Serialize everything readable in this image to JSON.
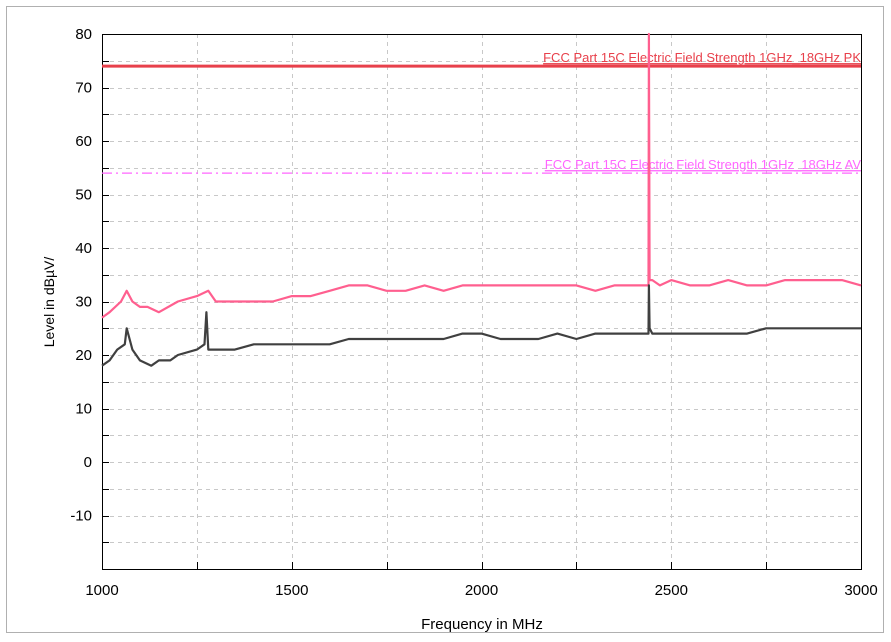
{
  "chart_data": {
    "type": "line",
    "xlabel": "Frequency in MHz",
    "ylabel": "Level in dBµV/",
    "xlim": [
      1000,
      3000
    ],
    "ylim": [
      -20,
      80
    ],
    "x_ticks": [
      1000,
      1500,
      2000,
      2500,
      3000
    ],
    "x_tick_labels": [
      "1000",
      "1500",
      "2000",
      "2500",
      "3000"
    ],
    "y_ticks": [
      -10,
      0,
      10,
      20,
      30,
      40,
      50,
      60,
      70,
      80
    ],
    "y_tick_labels": [
      "-10",
      "0",
      "10",
      "20",
      "30",
      "40",
      "50",
      "60",
      "70",
      "80"
    ],
    "grid": true,
    "limit_lines": [
      {
        "label": "FCC Part 15C Electric Field Strength 1GHz_18GHz PK",
        "value": 74,
        "color": "#e8404b",
        "style": "solid"
      },
      {
        "label": "FCC Part 15C Electric Field Strength 1GHz_18GHz AV",
        "value": 54,
        "color": "#ff66ff",
        "style": "dashdot"
      }
    ],
    "series": [
      {
        "color": "#ff5f8f",
        "x": [
          1000,
          1020,
          1050,
          1065,
          1080,
          1100,
          1120,
          1150,
          1200,
          1250,
          1280,
          1300,
          1350,
          1400,
          1450,
          1500,
          1550,
          1600,
          1650,
          1700,
          1750,
          1800,
          1850,
          1900,
          1950,
          2000,
          2050,
          2100,
          2150,
          2200,
          2250,
          2300,
          2350,
          2400,
          2430,
          2440,
          2441,
          2443,
          2450,
          2470,
          2500,
          2550,
          2600,
          2650,
          2700,
          2750,
          2800,
          2850,
          2900,
          2950,
          3000
        ],
        "y": [
          27,
          28,
          30,
          32,
          30,
          29,
          29,
          28,
          30,
          31,
          32,
          30,
          30,
          30,
          30,
          31,
          31,
          32,
          33,
          33,
          32,
          32,
          33,
          32,
          33,
          33,
          33,
          33,
          33,
          33,
          33,
          32,
          33,
          33,
          33,
          33,
          80,
          34,
          34,
          33,
          34,
          33,
          33,
          34,
          33,
          33,
          34,
          34,
          34,
          34,
          33
        ]
      },
      {
        "color": "#404040",
        "x": [
          1000,
          1020,
          1040,
          1060,
          1065,
          1080,
          1100,
          1130,
          1150,
          1180,
          1200,
          1250,
          1270,
          1275,
          1280,
          1300,
          1350,
          1400,
          1450,
          1500,
          1550,
          1600,
          1650,
          1700,
          1750,
          1800,
          1850,
          1900,
          1950,
          2000,
          2050,
          2100,
          2150,
          2200,
          2250,
          2300,
          2350,
          2400,
          2430,
          2440,
          2441,
          2443,
          2450,
          2470,
          2500,
          2550,
          2600,
          2650,
          2700,
          2750,
          2800,
          2850,
          2900,
          2950,
          3000
        ],
        "y": [
          18,
          19,
          21,
          22,
          25,
          21,
          19,
          18,
          19,
          19,
          20,
          21,
          22,
          28,
          21,
          21,
          21,
          22,
          22,
          22,
          22,
          22,
          23,
          23,
          23,
          23,
          23,
          23,
          24,
          24,
          23,
          23,
          23,
          24,
          23,
          24,
          24,
          24,
          24,
          24,
          33,
          25,
          24,
          24,
          24,
          24,
          24,
          24,
          24,
          25,
          25,
          25,
          25,
          25,
          25
        ]
      }
    ]
  }
}
